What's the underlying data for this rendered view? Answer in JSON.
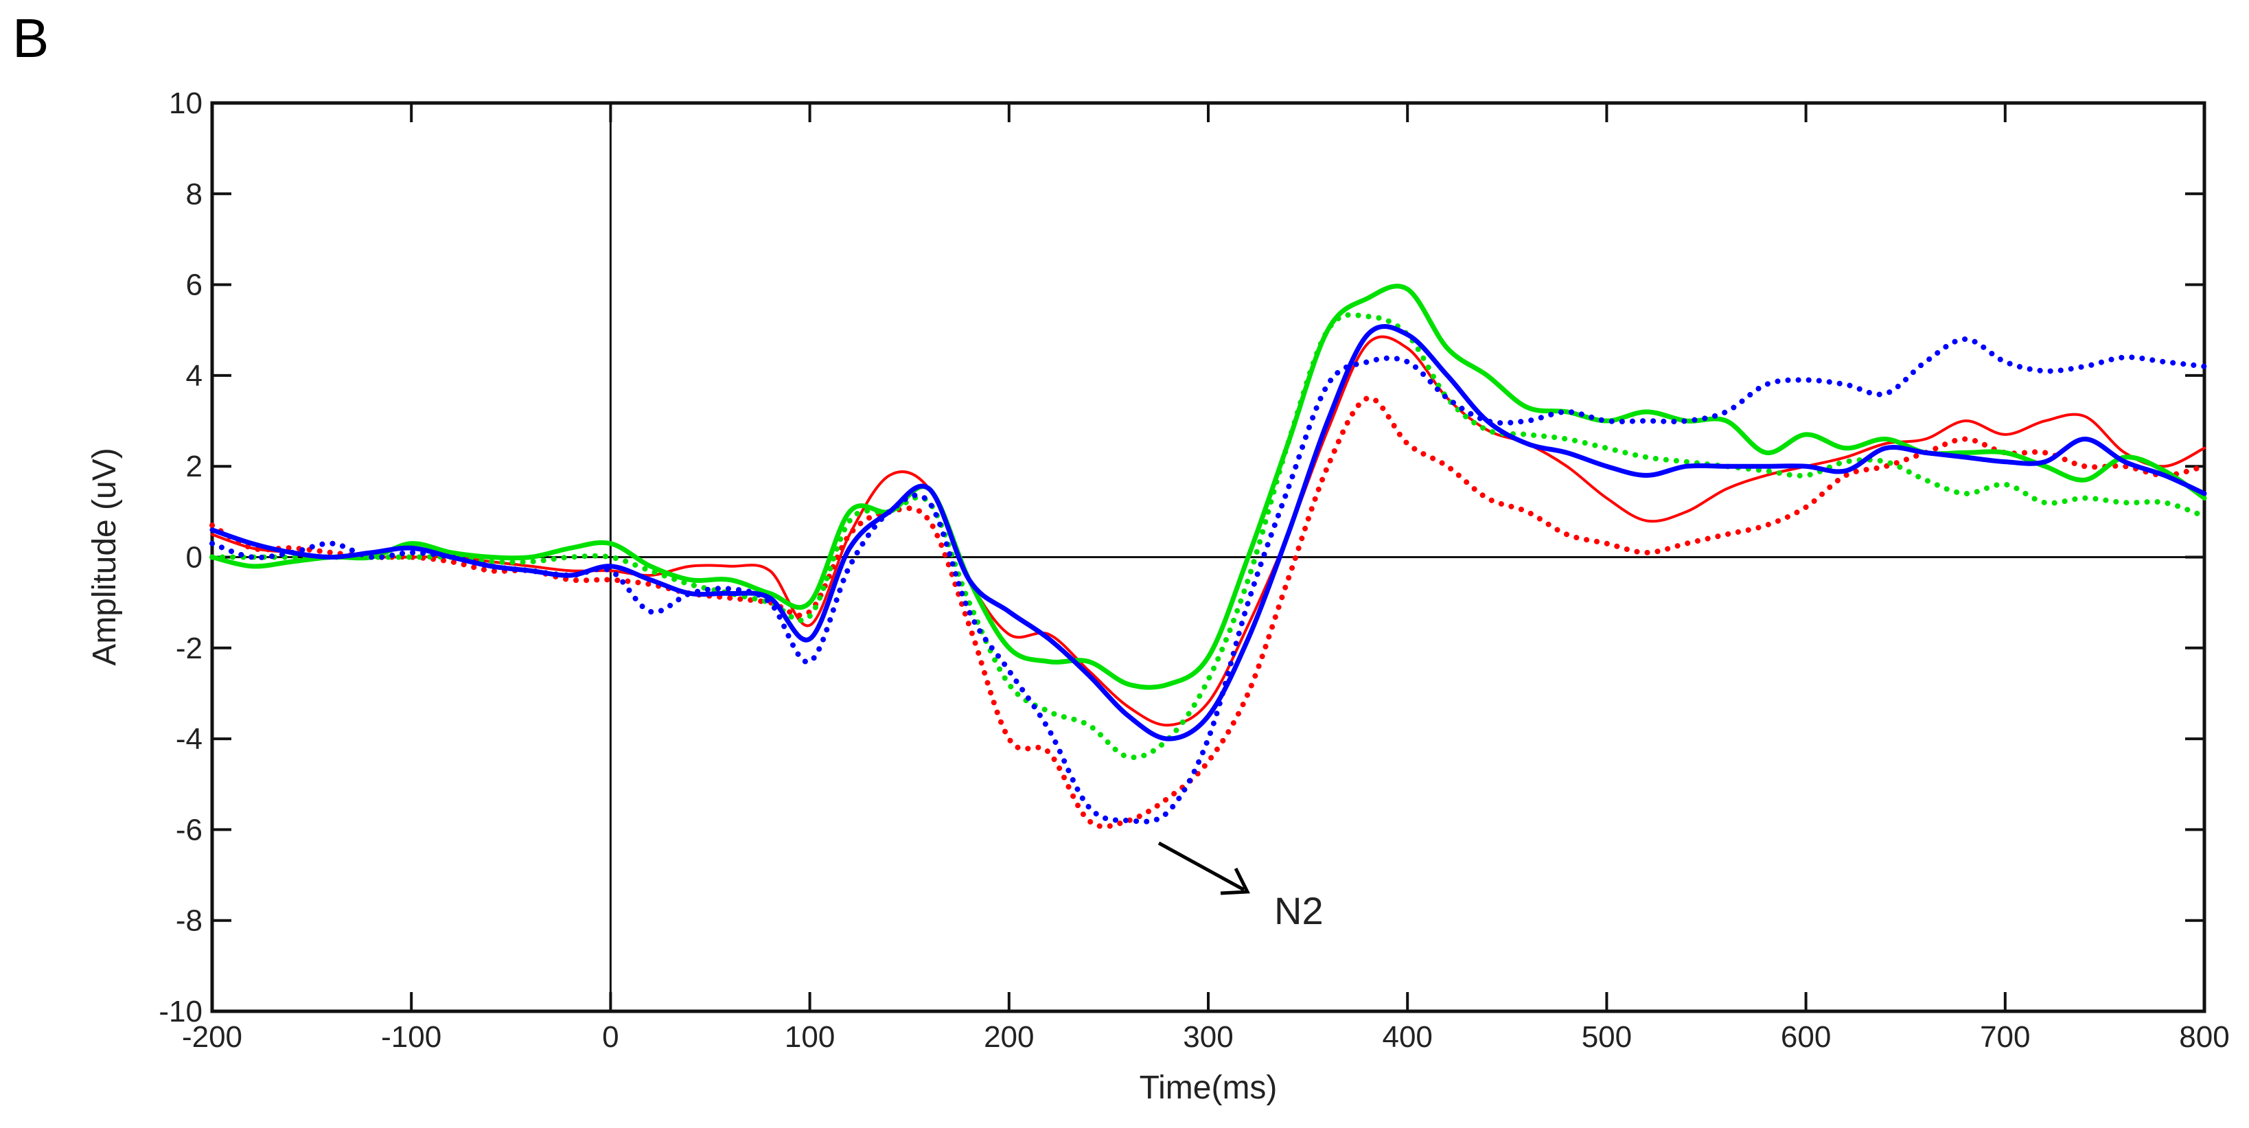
{
  "panel_label": "B",
  "chart_data": {
    "type": "line",
    "title": "",
    "xlabel": "Time(ms)",
    "ylabel": "Amplitude (uV)",
    "xlim": [
      -200,
      800
    ],
    "ylim": [
      -10,
      10
    ],
    "xticks": [
      -200,
      -100,
      0,
      100,
      200,
      300,
      400,
      500,
      600,
      700,
      800
    ],
    "yticks": [
      -10,
      -8,
      -6,
      -4,
      -2,
      0,
      2,
      4,
      6,
      8,
      10
    ],
    "grid": false,
    "reference_lines": {
      "x": 0,
      "y": 0
    },
    "annotation": {
      "text": "N2"
    },
    "x": [
      -200,
      -180,
      -160,
      -140,
      -120,
      -100,
      -80,
      -60,
      -40,
      -20,
      0,
      20,
      40,
      60,
      80,
      100,
      120,
      140,
      160,
      180,
      200,
      220,
      240,
      260,
      280,
      300,
      320,
      340,
      360,
      380,
      400,
      420,
      440,
      460,
      480,
      500,
      520,
      540,
      560,
      580,
      600,
      620,
      640,
      660,
      680,
      700,
      720,
      740,
      760,
      780,
      800
    ],
    "series": [
      {
        "color": "#ff0000",
        "style": "solid",
        "weight": "thin",
        "values": [
          0.5,
          0.2,
          0.1,
          0,
          0,
          0,
          0,
          -0.1,
          -0.2,
          -0.3,
          -0.3,
          -0.4,
          -0.2,
          -0.2,
          -0.3,
          -1.5,
          0.5,
          1.8,
          1.5,
          -0.5,
          -1.7,
          -1.7,
          -2.5,
          -3.3,
          -3.7,
          -3.2,
          -1.5,
          0.5,
          2.8,
          4.7,
          4.6,
          3.5,
          2.8,
          2.5,
          2.0,
          1.3,
          0.8,
          1.0,
          1.5,
          1.8,
          2.0,
          2.2,
          2.5,
          2.6,
          3.0,
          2.7,
          3.0,
          3.1,
          2.3,
          2.0,
          2.4
        ]
      },
      {
        "color": "#ff0000",
        "style": "dotted",
        "weight": "thick",
        "values": [
          0.7,
          0.2,
          0.2,
          0.1,
          0,
          0,
          -0.1,
          -0.3,
          -0.3,
          -0.5,
          -0.5,
          -0.6,
          -0.8,
          -0.9,
          -1.0,
          -1.2,
          0.5,
          1.0,
          0.8,
          -1.5,
          -4.0,
          -4.3,
          -5.8,
          -5.8,
          -5.3,
          -4.5,
          -3.0,
          -0.5,
          2.0,
          3.5,
          2.5,
          2.0,
          1.3,
          1.0,
          0.5,
          0.3,
          0.1,
          0.3,
          0.5,
          0.7,
          1.1,
          1.8,
          2.0,
          2.3,
          2.6,
          2.3,
          2.3,
          2.0,
          2.0,
          1.8,
          2.0
        ]
      },
      {
        "color": "#00e000",
        "style": "solid",
        "weight": "thick",
        "values": [
          0,
          -0.2,
          -0.1,
          0,
          0,
          0.3,
          0.1,
          0,
          0,
          0.2,
          0.3,
          -0.2,
          -0.5,
          -0.5,
          -0.8,
          -1.0,
          1.0,
          1.0,
          1.5,
          -0.5,
          -2.0,
          -2.3,
          -2.3,
          -2.8,
          -2.8,
          -2.2,
          0,
          2.5,
          5.0,
          5.7,
          5.9,
          4.6,
          4.0,
          3.3,
          3.2,
          3.0,
          3.2,
          3.0,
          3.0,
          2.3,
          2.7,
          2.4,
          2.6,
          2.3,
          2.3,
          2.3,
          2.0,
          1.7,
          2.2,
          1.9,
          1.3
        ]
      },
      {
        "color": "#00e000",
        "style": "dotted",
        "weight": "thick",
        "values": [
          0,
          0,
          0,
          0,
          0,
          0,
          0,
          -0.1,
          -0.1,
          0,
          0,
          -0.3,
          -0.6,
          -0.8,
          -1.0,
          -1.3,
          0.8,
          1.0,
          1.2,
          -1.0,
          -2.8,
          -3.4,
          -3.7,
          -4.4,
          -4.0,
          -2.7,
          -0.5,
          2.5,
          5.0,
          5.3,
          4.9,
          3.5,
          2.8,
          2.7,
          2.6,
          2.4,
          2.2,
          2.1,
          2.0,
          1.9,
          1.8,
          2.1,
          2.1,
          1.7,
          1.4,
          1.6,
          1.2,
          1.3,
          1.2,
          1.2,
          0.9
        ]
      },
      {
        "color": "#0000ff",
        "style": "solid",
        "weight": "thick",
        "values": [
          0.6,
          0.3,
          0.1,
          0,
          0.1,
          0.2,
          0,
          -0.2,
          -0.3,
          -0.4,
          -0.2,
          -0.5,
          -0.8,
          -0.8,
          -0.9,
          -1.8,
          0.2,
          1.0,
          1.5,
          -0.5,
          -1.2,
          -1.8,
          -2.6,
          -3.5,
          -4.0,
          -3.5,
          -1.8,
          0.5,
          3.0,
          4.9,
          4.9,
          4.0,
          3.0,
          2.5,
          2.3,
          2.0,
          1.8,
          2.0,
          2.0,
          2.0,
          2.0,
          1.9,
          2.4,
          2.3,
          2.2,
          2.1,
          2.1,
          2.6,
          2.1,
          1.8,
          1.4
        ]
      },
      {
        "color": "#0000ff",
        "style": "dotted",
        "weight": "thick",
        "values": [
          0.3,
          0,
          0.1,
          0.3,
          0,
          0.1,
          0,
          -0.2,
          -0.3,
          -0.4,
          -0.3,
          -1.2,
          -0.8,
          -0.7,
          -1.0,
          -2.3,
          -0.2,
          1.0,
          1.2,
          -1.2,
          -2.5,
          -3.8,
          -5.5,
          -5.8,
          -5.6,
          -4.0,
          -1.0,
          1.5,
          3.8,
          4.3,
          4.3,
          3.5,
          3.0,
          3.0,
          3.2,
          3.0,
          3.0,
          3.0,
          3.2,
          3.8,
          3.9,
          3.8,
          3.6,
          4.3,
          4.8,
          4.3,
          4.1,
          4.2,
          4.4,
          4.3,
          4.2
        ]
      }
    ]
  }
}
